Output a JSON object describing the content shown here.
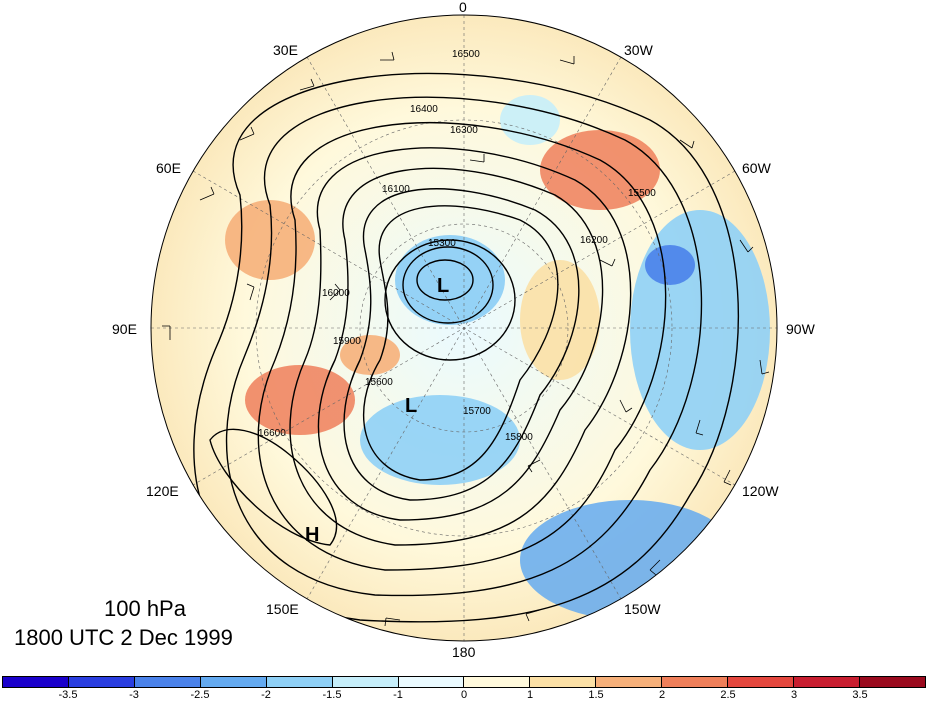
{
  "map": {
    "level": "100 hPa",
    "valid_time": "1800 UTC 2 Dec 1999",
    "longitude_labels": [
      "0",
      "30W",
      "60W",
      "90W",
      "120W",
      "150W",
      "180",
      "150E",
      "120E",
      "90E",
      "60E",
      "30E"
    ],
    "contour_labels": [
      "16500",
      "16400",
      "16300",
      "16200",
      "16100",
      "16000",
      "15900",
      "15800",
      "15700",
      "15600",
      "15500",
      "15300",
      "16600"
    ],
    "centers": [
      {
        "label": "L",
        "name": "low-center-siberia"
      },
      {
        "label": "L",
        "name": "low-center-north-pacific"
      },
      {
        "label": "H",
        "name": "high-center-east-asia"
      }
    ],
    "colors": {
      "ocean_fill": "#ffffff",
      "contour": "#000000"
    }
  },
  "colorbar": {
    "tick_labels": [
      "-3.5",
      "-3",
      "-2.5",
      "-2",
      "-1.5",
      "-1",
      "0",
      "1",
      "1.5",
      "2",
      "2.5",
      "3",
      "3.5"
    ],
    "colors": [
      "#1a00cc",
      "#2a3ee0",
      "#4a82ea",
      "#64aaf0",
      "#8fd0f6",
      "#c6eefa",
      "#eafaff",
      "#fff9dc",
      "#fbe0a6",
      "#f6b07a",
      "#ef7f5a",
      "#e4473e",
      "#c81e30",
      "#9a0a1e"
    ]
  }
}
